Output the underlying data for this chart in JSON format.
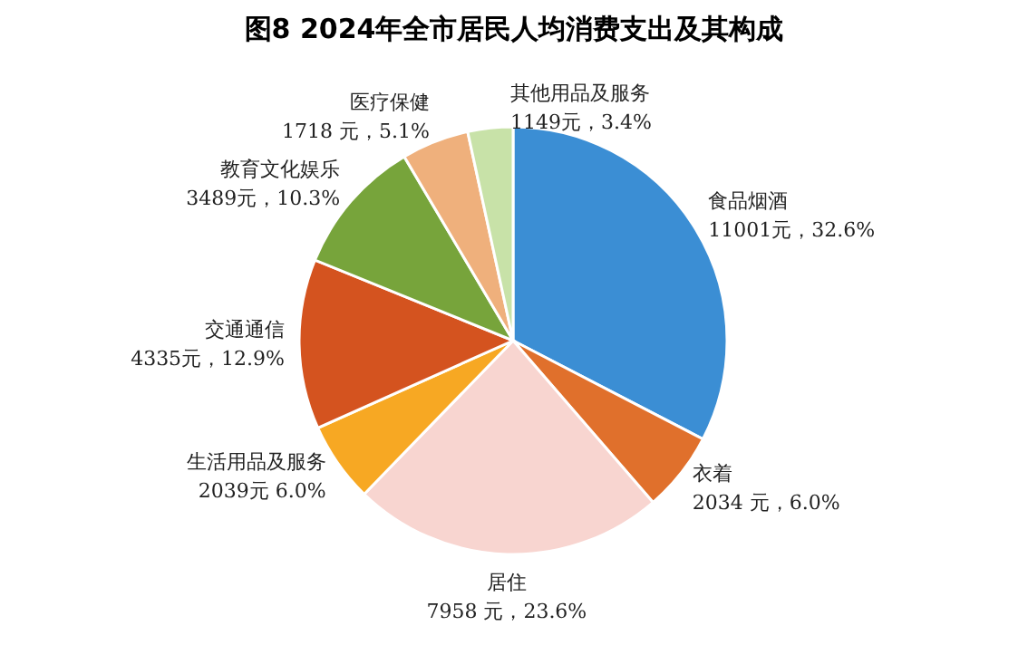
{
  "chart_data": {
    "type": "pie",
    "title": "图8 2024年全市居民人均消费支出及其构成",
    "categories": [
      "食品烟酒",
      "衣着",
      "居住",
      "生活用品及服务",
      "交通通信",
      "教育文化娱乐",
      "医疗保健",
      "其他用品及服务"
    ],
    "values": [
      11001,
      2034,
      7958,
      2039,
      4335,
      3489,
      1718,
      1149
    ],
    "value_labels": [
      "11001元，32.6%",
      "2034 元，6.0%",
      "7958 元，23.6%",
      "2039元 6.0%",
      "4335元，12.9%",
      "3489元，10.3%",
      "1718 元，5.1%",
      "1149元，3.4%"
    ],
    "colors": [
      "#3b8ed4",
      "#e0702c",
      "#f8d5d0",
      "#f7a823",
      "#d4531f",
      "#77a43b",
      "#efb07c",
      "#c8e2a8"
    ]
  }
}
